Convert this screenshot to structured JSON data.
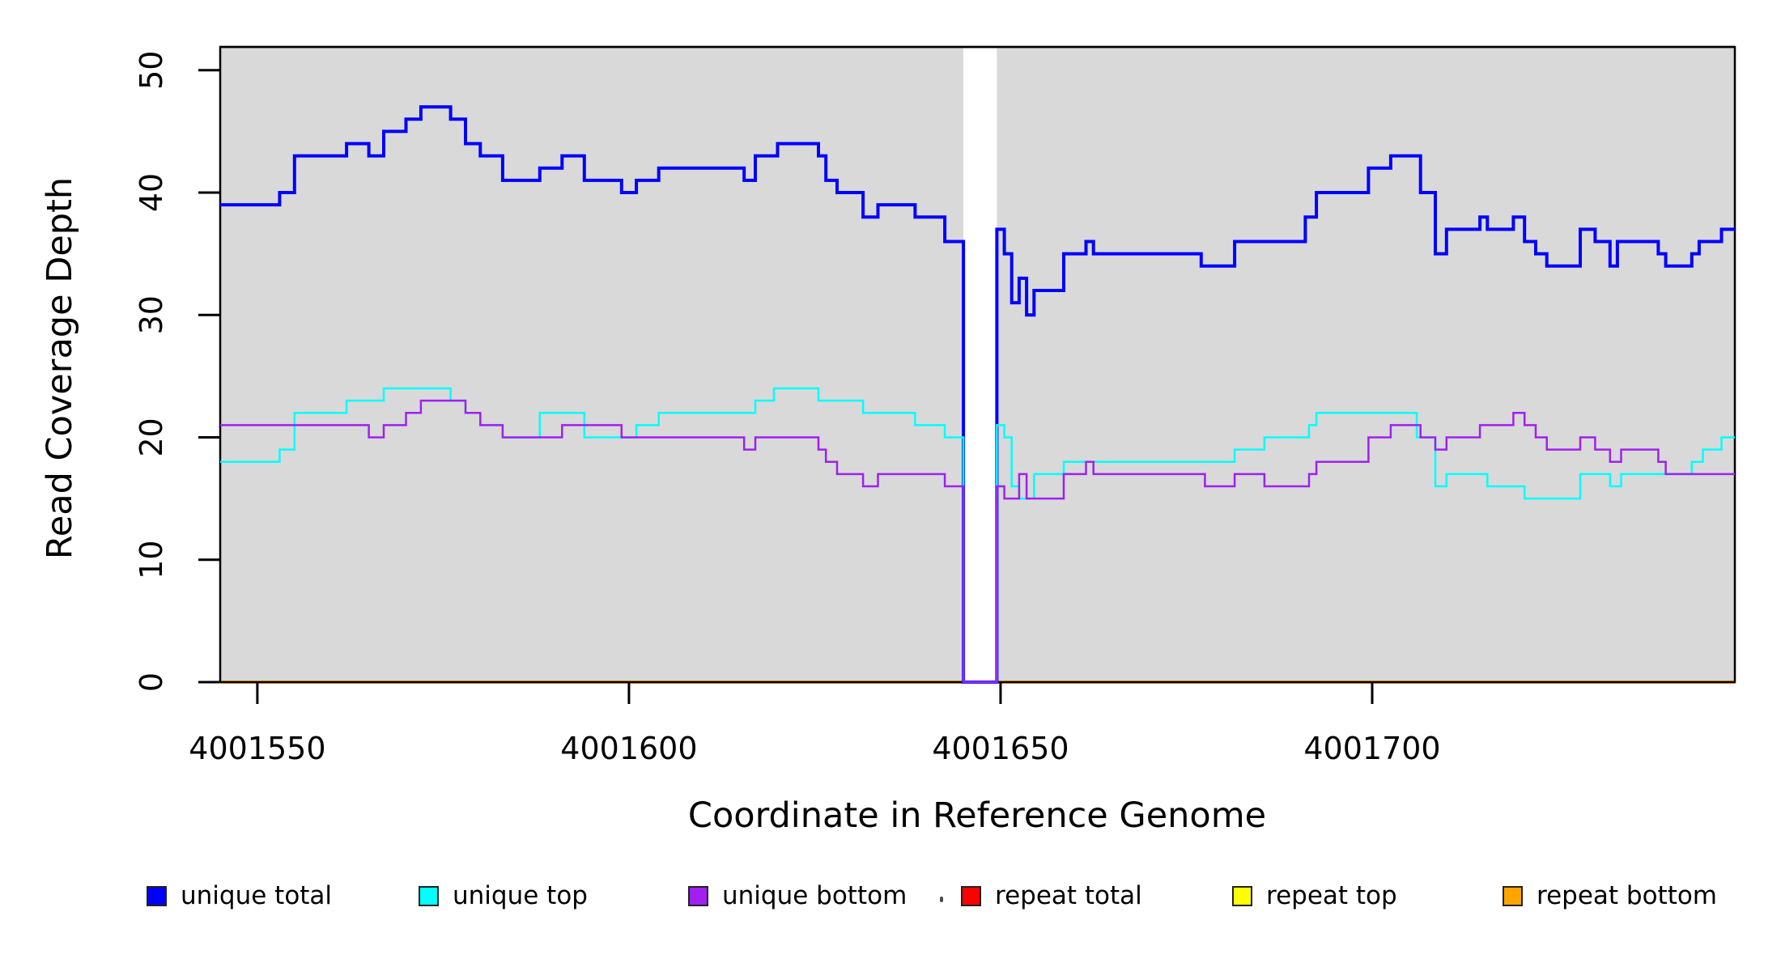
{
  "figure": {
    "xlabel": "Coordinate in Reference Genome",
    "ylabel": "Read Coverage Depth"
  },
  "chart_data": {
    "type": "line",
    "subtype": "step",
    "title": "",
    "xlabel": "Coordinate in Reference Genome",
    "ylabel": "Read Coverage Depth",
    "xlim": [
      4001545,
      4001748.8
    ],
    "ylim": [
      0,
      51.9
    ],
    "x_ticks": [
      4001550,
      4001600,
      4001650,
      4001700
    ],
    "y_ticks": [
      0,
      10,
      20,
      30,
      40,
      50
    ],
    "grid": false,
    "plot_background": "#d9d9d9",
    "page_background": "#ffffff",
    "border_color": "#000000",
    "gap_region": {
      "x_start": 4001645,
      "x_end": 4001649.5,
      "color": "#ffffff"
    },
    "series": [
      {
        "name": "repeat total",
        "color": "#ff0000",
        "width": 4,
        "above_gap": false,
        "points": [
          [
            4001545,
            0
          ]
        ]
      },
      {
        "name": "repeat top",
        "color": "#ffff00",
        "width": 4,
        "above_gap": false,
        "points": [
          [
            4001545,
            0
          ]
        ]
      },
      {
        "name": "repeat bottom",
        "color": "#ffa500",
        "width": 4,
        "above_gap": false,
        "points": [
          [
            4001545,
            0
          ]
        ]
      },
      {
        "name": "unique total",
        "color": "#0000ff",
        "width": 4,
        "above_gap": true,
        "points": [
          [
            4001545,
            39
          ],
          [
            4001553,
            40
          ],
          [
            4001555,
            43
          ],
          [
            4001562,
            44
          ],
          [
            4001565,
            43
          ],
          [
            4001567,
            45
          ],
          [
            4001570,
            46
          ],
          [
            4001572,
            47
          ],
          [
            4001576,
            46
          ],
          [
            4001578,
            44
          ],
          [
            4001580,
            43
          ],
          [
            4001583,
            41
          ],
          [
            4001588,
            42
          ],
          [
            4001591,
            43
          ],
          [
            4001594,
            41
          ],
          [
            4001599,
            40
          ],
          [
            4001601,
            41
          ],
          [
            4001604,
            42
          ],
          [
            4001615.5,
            41
          ],
          [
            4001617,
            43
          ],
          [
            4001620,
            44
          ],
          [
            4001625.5,
            43
          ],
          [
            4001626.5,
            41
          ],
          [
            4001628,
            40
          ],
          [
            4001631.5,
            38
          ],
          [
            4001633.5,
            39
          ],
          [
            4001638.5,
            38
          ],
          [
            4001642.5,
            36
          ],
          [
            4001645,
            0
          ],
          [
            4001649.5,
            37
          ],
          [
            4001650.5,
            35
          ],
          [
            4001651.5,
            31
          ],
          [
            4001652.5,
            33
          ],
          [
            4001653.5,
            30
          ],
          [
            4001654.5,
            32
          ],
          [
            4001658.5,
            35
          ],
          [
            4001661.5,
            36
          ],
          [
            4001662.5,
            35
          ],
          [
            4001677,
            34
          ],
          [
            4001681.5,
            36
          ],
          [
            4001691,
            38
          ],
          [
            4001692.5,
            40
          ],
          [
            4001699.5,
            42
          ],
          [
            4001702.5,
            43
          ],
          [
            4001706.5,
            40
          ],
          [
            4001708.5,
            35
          ],
          [
            4001710,
            37
          ],
          [
            4001714.5,
            38
          ],
          [
            4001715.5,
            37
          ],
          [
            4001719,
            38
          ],
          [
            4001720.5,
            36
          ],
          [
            4001722,
            35
          ],
          [
            4001723.5,
            34
          ],
          [
            4001728,
            37
          ],
          [
            4001730,
            36
          ],
          [
            4001732,
            34
          ],
          [
            4001733,
            36
          ],
          [
            4001738.5,
            35
          ],
          [
            4001739.5,
            34
          ],
          [
            4001743,
            35
          ],
          [
            4001744,
            36
          ],
          [
            4001747,
            37
          ]
        ]
      },
      {
        "name": "unique top",
        "color": "#00ffff",
        "width": 2.5,
        "above_gap": true,
        "points": [
          [
            4001545,
            18
          ],
          [
            4001553,
            19
          ],
          [
            4001555,
            22
          ],
          [
            4001562,
            23
          ],
          [
            4001567,
            24
          ],
          [
            4001576,
            23
          ],
          [
            4001578,
            22
          ],
          [
            4001580,
            21
          ],
          [
            4001583,
            20
          ],
          [
            4001588,
            22
          ],
          [
            4001594,
            20
          ],
          [
            4001601,
            21
          ],
          [
            4001604,
            22
          ],
          [
            4001617,
            23
          ],
          [
            4001619.5,
            24
          ],
          [
            4001625.5,
            23
          ],
          [
            4001631.5,
            22
          ],
          [
            4001638.5,
            21
          ],
          [
            4001642.5,
            20
          ],
          [
            4001645,
            0
          ],
          [
            4001649.5,
            21
          ],
          [
            4001650.5,
            20
          ],
          [
            4001651.5,
            16
          ],
          [
            4001652.5,
            15
          ],
          [
            4001654.5,
            17
          ],
          [
            4001658.5,
            18
          ],
          [
            4001681.5,
            19
          ],
          [
            4001685.5,
            20
          ],
          [
            4001691.5,
            21
          ],
          [
            4001692.5,
            22
          ],
          [
            4001706,
            20
          ],
          [
            4001708.5,
            16
          ],
          [
            4001710,
            17
          ],
          [
            4001715.5,
            16
          ],
          [
            4001720.5,
            15
          ],
          [
            4001728,
            17
          ],
          [
            4001732,
            16
          ],
          [
            4001733.5,
            17
          ],
          [
            4001743,
            18
          ],
          [
            4001744.5,
            19
          ],
          [
            4001747,
            20
          ]
        ]
      },
      {
        "name": "unique bottom",
        "color": "#a020f0",
        "width": 2.5,
        "above_gap": true,
        "points": [
          [
            4001545,
            21
          ],
          [
            4001565,
            20
          ],
          [
            4001567,
            21
          ],
          [
            4001570,
            22
          ],
          [
            4001572,
            23
          ],
          [
            4001578,
            22
          ],
          [
            4001580,
            21
          ],
          [
            4001583,
            20
          ],
          [
            4001591,
            21
          ],
          [
            4001599,
            20
          ],
          [
            4001615.5,
            19
          ],
          [
            4001617,
            20
          ],
          [
            4001625.5,
            19
          ],
          [
            4001626.5,
            18
          ],
          [
            4001628,
            17
          ],
          [
            4001631.5,
            16
          ],
          [
            4001633.5,
            17
          ],
          [
            4001642.5,
            16
          ],
          [
            4001645,
            0
          ],
          [
            4001649.5,
            16
          ],
          [
            4001650.5,
            15
          ],
          [
            4001652.5,
            17
          ],
          [
            4001653.5,
            15
          ],
          [
            4001658.5,
            17
          ],
          [
            4001661.5,
            18
          ],
          [
            4001662.5,
            17
          ],
          [
            4001677.5,
            16
          ],
          [
            4001681.5,
            17
          ],
          [
            4001685.5,
            16
          ],
          [
            4001691.5,
            17
          ],
          [
            4001692.5,
            18
          ],
          [
            4001699.5,
            20
          ],
          [
            4001702.5,
            21
          ],
          [
            4001706.5,
            20
          ],
          [
            4001708.5,
            19
          ],
          [
            4001710,
            20
          ],
          [
            4001714.5,
            21
          ],
          [
            4001719,
            22
          ],
          [
            4001720.5,
            21
          ],
          [
            4001722,
            20
          ],
          [
            4001723.5,
            19
          ],
          [
            4001728,
            20
          ],
          [
            4001730,
            19
          ],
          [
            4001732,
            18
          ],
          [
            4001733.5,
            19
          ],
          [
            4001738.5,
            18
          ],
          [
            4001739.5,
            17
          ]
        ]
      }
    ],
    "legend": {
      "position": "bottom",
      "items": [
        {
          "label": "unique total",
          "color": "#0000ff"
        },
        {
          "label": "unique top",
          "color": "#00ffff"
        },
        {
          "label": "unique bottom",
          "color": "#a020f0"
        },
        {
          "label": "repeat total",
          "color": "#ff0000"
        },
        {
          "label": "repeat top",
          "color": "#ffff00"
        },
        {
          "label": "repeat bottom",
          "color": "#ffa500"
        }
      ]
    }
  }
}
